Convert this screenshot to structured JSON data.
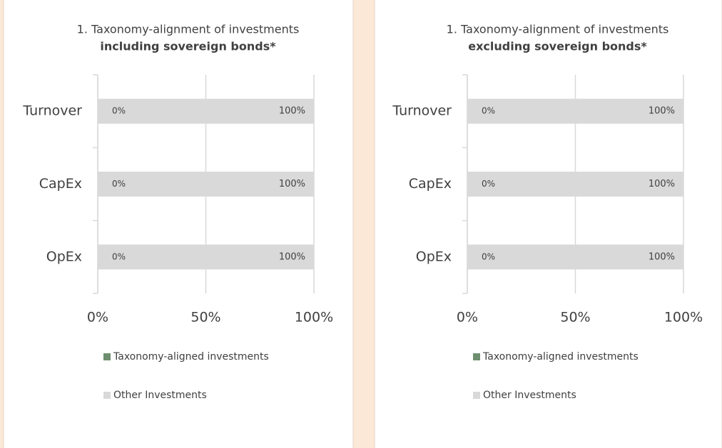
{
  "chart_data": [
    {
      "type": "stacked-bar-horizontal",
      "title": "1. Taxonomy-alignment of investments",
      "subtitle": "including sovereign bonds*",
      "categories": [
        "Turnover",
        "CapEx",
        "OpEx"
      ],
      "series": [
        {
          "name": "Taxonomy-aligned investments",
          "color": "#6d8f6f",
          "values": [
            0,
            0,
            0
          ],
          "value_labels": [
            "0%",
            "0%",
            "0%"
          ]
        },
        {
          "name": "Other Investments",
          "color": "#d9d9d9",
          "values": [
            100,
            100,
            100
          ],
          "value_labels": [
            "100%",
            "100%",
            "100%"
          ]
        }
      ],
      "xlim": [
        0,
        100
      ],
      "xticks": [
        {
          "value": 0,
          "label": "0%"
        },
        {
          "value": 50,
          "label": "50%"
        },
        {
          "value": 100,
          "label": "100%"
        }
      ],
      "grid": true,
      "legend": "bottom"
    },
    {
      "type": "stacked-bar-horizontal",
      "title": "1. Taxonomy-alignment of investments",
      "subtitle": "excluding sovereign bonds*",
      "categories": [
        "Turnover",
        "CapEx",
        "OpEx"
      ],
      "series": [
        {
          "name": "Taxonomy-aligned investments",
          "color": "#6d8f6f",
          "values": [
            0,
            0,
            0
          ],
          "value_labels": [
            "0%",
            "0%",
            "0%"
          ]
        },
        {
          "name": "Other Investments",
          "color": "#d9d9d9",
          "values": [
            100,
            100,
            100
          ],
          "value_labels": [
            "100%",
            "100%",
            "100%"
          ]
        }
      ],
      "xlim": [
        0,
        100
      ],
      "xticks": [
        {
          "value": 0,
          "label": "0%"
        },
        {
          "value": 50,
          "label": "50%"
        },
        {
          "value": 100,
          "label": "100%"
        }
      ],
      "grid": true,
      "legend": "bottom"
    }
  ]
}
